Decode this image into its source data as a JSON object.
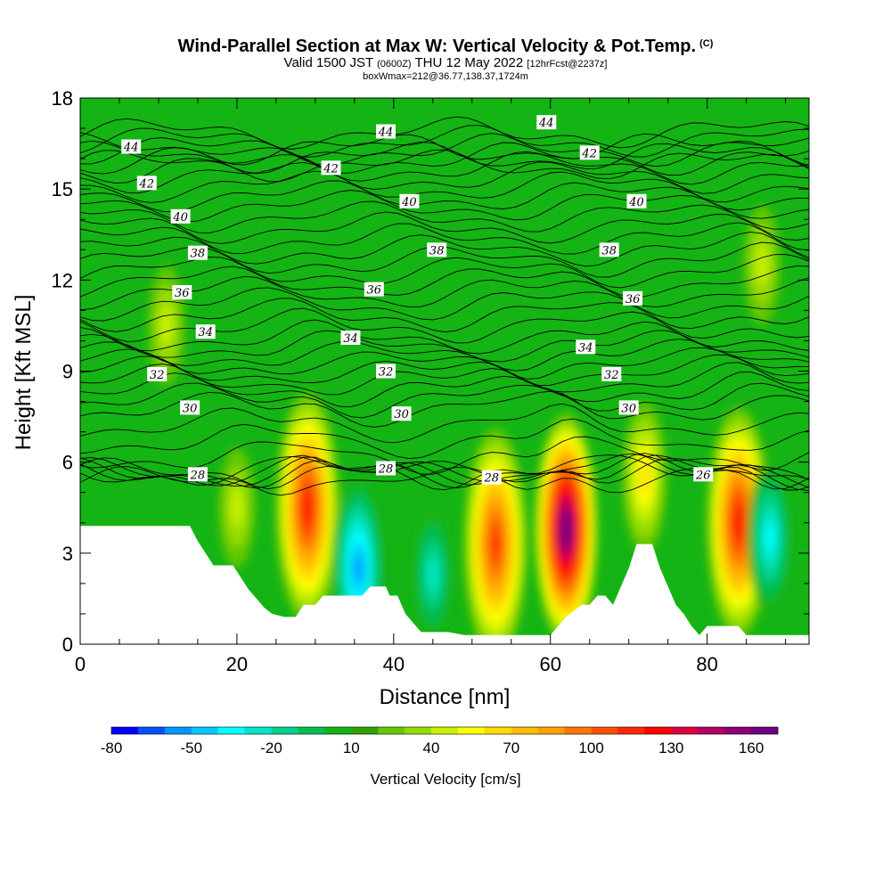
{
  "title": {
    "main": "Wind-Parallel Section at Max W: Vertical Velocity & Pot.Temp.",
    "copyright": "(C)",
    "valid_prefix": "Valid 1500 JST",
    "valid_utc": "(0600Z)",
    "valid_date": "THU 12 May 2022",
    "forecast": "[12hrFcst@2237z]",
    "box_info": "boxWmax=212@36.77,138.37,1724m"
  },
  "chart_data": {
    "type": "heatmap",
    "xlabel": "Distance [nm]",
    "ylabel": "Height [Kft MSL]",
    "xlim": [
      0,
      93
    ],
    "ylim": [
      0,
      18
    ],
    "x_ticks": [
      "0",
      "20",
      "40",
      "60",
      "80"
    ],
    "y_ticks": [
      "0",
      "3",
      "6",
      "9",
      "12",
      "15",
      "18"
    ],
    "colorbar": {
      "label": "Vertical Velocity [cm/s]",
      "tick_labels": [
        "-80",
        "-50",
        "-20",
        "10",
        "40",
        "70",
        "100",
        "130",
        "160"
      ],
      "min": -80,
      "max": 170,
      "step": 10,
      "colors": [
        "#0000ff",
        "#0050ff",
        "#0096ff",
        "#00c8ff",
        "#00ffff",
        "#00e6c8",
        "#00d28c",
        "#00be50",
        "#14b414",
        "#32a000",
        "#64c800",
        "#96dc00",
        "#c8f000",
        "#ffff00",
        "#ffdc00",
        "#ffbe00",
        "#ffa000",
        "#ff7800",
        "#ff5000",
        "#ff2800",
        "#ff0000",
        "#dc0040",
        "#b40064",
        "#8c0078",
        "#6e0082"
      ]
    },
    "w_cells": [
      {
        "x": 11,
        "z": 10.5,
        "w": 40
      },
      {
        "x": 20,
        "z": 4.5,
        "w": 40
      },
      {
        "x": 29,
        "z": 4.5,
        "w": 120
      },
      {
        "x": 35.5,
        "z": 2.5,
        "w": -60
      },
      {
        "x": 45,
        "z": 2.3,
        "w": -30
      },
      {
        "x": 53,
        "z": 3.3,
        "w": 110
      },
      {
        "x": 62,
        "z": 3.8,
        "w": 165
      },
      {
        "x": 72,
        "z": 5.5,
        "w": 60
      },
      {
        "x": 84,
        "z": 4.0,
        "w": 120
      },
      {
        "x": 88,
        "z": 3.5,
        "w": -40
      },
      {
        "x": 87,
        "z": 12.5,
        "w": 40
      }
    ],
    "theta_labels": [
      {
        "text": "44",
        "x": 6.5,
        "z": 16.4
      },
      {
        "text": "44",
        "x": 39,
        "z": 16.9
      },
      {
        "text": "44",
        "x": 59.5,
        "z": 17.2
      },
      {
        "text": "42",
        "x": 8.5,
        "z": 15.2
      },
      {
        "text": "42",
        "x": 32,
        "z": 15.7
      },
      {
        "text": "42",
        "x": 65,
        "z": 16.2
      },
      {
        "text": "40",
        "x": 12.8,
        "z": 14.1
      },
      {
        "text": "40",
        "x": 42,
        "z": 14.6
      },
      {
        "text": "40",
        "x": 71,
        "z": 14.6
      },
      {
        "text": "38",
        "x": 15,
        "z": 12.9
      },
      {
        "text": "38",
        "x": 45.5,
        "z": 13.0
      },
      {
        "text": "38",
        "x": 67.5,
        "z": 13.0
      },
      {
        "text": "36",
        "x": 13,
        "z": 11.6
      },
      {
        "text": "36",
        "x": 37.5,
        "z": 11.7
      },
      {
        "text": "36",
        "x": 70.5,
        "z": 11.4
      },
      {
        "text": "34",
        "x": 16,
        "z": 10.3
      },
      {
        "text": "34",
        "x": 34.5,
        "z": 10.1
      },
      {
        "text": "34",
        "x": 64.5,
        "z": 9.8
      },
      {
        "text": "32",
        "x": 9.8,
        "z": 8.9
      },
      {
        "text": "32",
        "x": 39,
        "z": 9.0
      },
      {
        "text": "32",
        "x": 67.8,
        "z": 8.9
      },
      {
        "text": "30",
        "x": 14,
        "z": 7.8
      },
      {
        "text": "30",
        "x": 41,
        "z": 7.6
      },
      {
        "text": "30",
        "x": 70,
        "z": 7.8
      },
      {
        "text": "28",
        "x": 15,
        "z": 5.6
      },
      {
        "text": "28",
        "x": 39,
        "z": 5.8
      },
      {
        "text": "28",
        "x": 52.5,
        "z": 5.5
      },
      {
        "text": "26",
        "x": 79.5,
        "z": 5.6
      }
    ],
    "terrain": [
      [
        0,
        3.9
      ],
      [
        14,
        3.9
      ],
      [
        15,
        3.4
      ],
      [
        16,
        3.0
      ],
      [
        17,
        2.6
      ],
      [
        18,
        2.6
      ],
      [
        19.5,
        2.6
      ],
      [
        20.5,
        2.2
      ],
      [
        21.5,
        1.8
      ],
      [
        22.5,
        1.5
      ],
      [
        23.5,
        1.2
      ],
      [
        24.5,
        1.0
      ],
      [
        26,
        0.9
      ],
      [
        27.5,
        0.9
      ],
      [
        28.5,
        1.3
      ],
      [
        30,
        1.3
      ],
      [
        31,
        1.6
      ],
      [
        36,
        1.6
      ],
      [
        37,
        1.9
      ],
      [
        39,
        1.9
      ],
      [
        39.5,
        1.6
      ],
      [
        40.5,
        1.6
      ],
      [
        41.5,
        1.0
      ],
      [
        42.5,
        0.7
      ],
      [
        43.5,
        0.4
      ],
      [
        47,
        0.4
      ],
      [
        49,
        0.3
      ],
      [
        60,
        0.3
      ],
      [
        61,
        0.6
      ],
      [
        62,
        0.9
      ],
      [
        64,
        1.3
      ],
      [
        65,
        1.3
      ],
      [
        66,
        1.6
      ],
      [
        67,
        1.6
      ],
      [
        68,
        1.3
      ],
      [
        69,
        1.9
      ],
      [
        70,
        2.5
      ],
      [
        71,
        3.3
      ],
      [
        73,
        3.3
      ],
      [
        74,
        2.5
      ],
      [
        75,
        1.9
      ],
      [
        76,
        1.3
      ],
      [
        77,
        1.0
      ],
      [
        78,
        0.6
      ],
      [
        79,
        0.3
      ],
      [
        80,
        0.6
      ],
      [
        84,
        0.6
      ],
      [
        85,
        0.3
      ],
      [
        93,
        0.3
      ]
    ]
  }
}
